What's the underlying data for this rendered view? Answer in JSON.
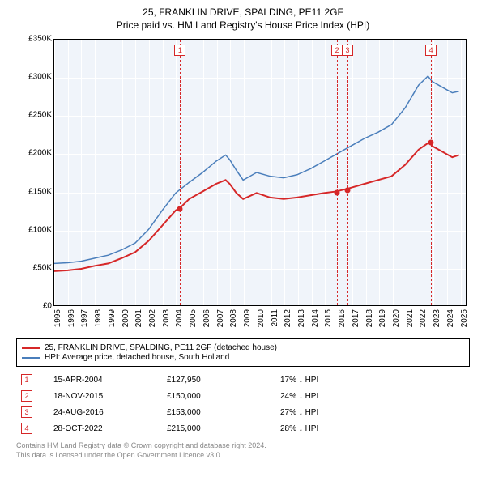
{
  "title": "25, FRANKLIN DRIVE, SPALDING, PE11 2GF",
  "subtitle": "Price paid vs. HM Land Registry's House Price Index (HPI)",
  "chart": {
    "type": "line",
    "background_color": "#f0f4fa",
    "grid_color": "#ffffff",
    "xlim": [
      1995,
      2025.5
    ],
    "ylim": [
      0,
      350000
    ],
    "ytick_step": 50000,
    "yticks": [
      "£0",
      "£50K",
      "£100K",
      "£150K",
      "£200K",
      "£250K",
      "£300K",
      "£350K"
    ],
    "xticks": [
      1995,
      1996,
      1997,
      1998,
      1999,
      2000,
      2001,
      2002,
      2003,
      2004,
      2005,
      2006,
      2007,
      2008,
      2009,
      2010,
      2011,
      2012,
      2013,
      2014,
      2015,
      2016,
      2017,
      2018,
      2019,
      2020,
      2021,
      2022,
      2023,
      2024,
      2025
    ],
    "series": [
      {
        "name": "price_paid",
        "label": "25, FRANKLIN DRIVE, SPALDING, PE11 2GF (detached house)",
        "color": "#d62728",
        "line_width": 2,
        "data": [
          [
            1995,
            45000
          ],
          [
            1996,
            46000
          ],
          [
            1997,
            48000
          ],
          [
            1998,
            52000
          ],
          [
            1999,
            55000
          ],
          [
            2000,
            62000
          ],
          [
            2001,
            70000
          ],
          [
            2002,
            85000
          ],
          [
            2003,
            105000
          ],
          [
            2004,
            125000
          ],
          [
            2004.3,
            127950
          ],
          [
            2005,
            140000
          ],
          [
            2006,
            150000
          ],
          [
            2007,
            160000
          ],
          [
            2007.7,
            165000
          ],
          [
            2008,
            160000
          ],
          [
            2008.5,
            148000
          ],
          [
            2009,
            140000
          ],
          [
            2010,
            148000
          ],
          [
            2011,
            142000
          ],
          [
            2012,
            140000
          ],
          [
            2013,
            142000
          ],
          [
            2014,
            145000
          ],
          [
            2015,
            148000
          ],
          [
            2015.9,
            150000
          ],
          [
            2016.6,
            153000
          ],
          [
            2017,
            155000
          ],
          [
            2018,
            160000
          ],
          [
            2019,
            165000
          ],
          [
            2020,
            170000
          ],
          [
            2021,
            185000
          ],
          [
            2022,
            205000
          ],
          [
            2022.8,
            215000
          ],
          [
            2023,
            210000
          ],
          [
            2024,
            200000
          ],
          [
            2024.5,
            195000
          ],
          [
            2025,
            198000
          ]
        ]
      },
      {
        "name": "hpi",
        "label": "HPI: Average price, detached house, South Holland",
        "color": "#4a7ebb",
        "line_width": 1.5,
        "data": [
          [
            1995,
            55000
          ],
          [
            1996,
            56000
          ],
          [
            1997,
            58000
          ],
          [
            1998,
            62000
          ],
          [
            1999,
            66000
          ],
          [
            2000,
            73000
          ],
          [
            2001,
            82000
          ],
          [
            2002,
            100000
          ],
          [
            2003,
            125000
          ],
          [
            2004,
            148000
          ],
          [
            2005,
            162000
          ],
          [
            2006,
            175000
          ],
          [
            2007,
            190000
          ],
          [
            2007.7,
            198000
          ],
          [
            2008,
            192000
          ],
          [
            2008.5,
            178000
          ],
          [
            2009,
            165000
          ],
          [
            2010,
            175000
          ],
          [
            2011,
            170000
          ],
          [
            2012,
            168000
          ],
          [
            2013,
            172000
          ],
          [
            2014,
            180000
          ],
          [
            2015,
            190000
          ],
          [
            2016,
            200000
          ],
          [
            2017,
            210000
          ],
          [
            2018,
            220000
          ],
          [
            2019,
            228000
          ],
          [
            2020,
            238000
          ],
          [
            2021,
            260000
          ],
          [
            2022,
            290000
          ],
          [
            2022.7,
            302000
          ],
          [
            2023,
            295000
          ],
          [
            2024,
            285000
          ],
          [
            2024.5,
            280000
          ],
          [
            2025,
            282000
          ]
        ]
      }
    ],
    "markers": [
      {
        "n": "1",
        "year": 2004.29,
        "color": "#d62728",
        "point_y": 127950
      },
      {
        "n": "2",
        "year": 2015.88,
        "color": "#d62728",
        "point_y": 150000
      },
      {
        "n": "3",
        "year": 2016.65,
        "color": "#d62728",
        "point_y": 153000
      },
      {
        "n": "4",
        "year": 2022.82,
        "color": "#d62728",
        "point_y": 215000
      }
    ],
    "axis_fontsize": 10,
    "title_fontsize": 12
  },
  "legend": {
    "box_border": "#000000",
    "items": [
      {
        "color": "#d62728",
        "label": "25, FRANKLIN DRIVE, SPALDING, PE11 2GF (detached house)"
      },
      {
        "color": "#4a7ebb",
        "label": "HPI: Average price, detached house, South Holland"
      }
    ]
  },
  "transactions": [
    {
      "n": "1",
      "date": "15-APR-2004",
      "price": "£127,950",
      "pct": "17%",
      "arrow": "↓",
      "vs": "HPI",
      "color": "#d62728"
    },
    {
      "n": "2",
      "date": "18-NOV-2015",
      "price": "£150,000",
      "pct": "24%",
      "arrow": "↓",
      "vs": "HPI",
      "color": "#d62728"
    },
    {
      "n": "3",
      "date": "24-AUG-2016",
      "price": "£153,000",
      "pct": "27%",
      "arrow": "↓",
      "vs": "HPI",
      "color": "#d62728"
    },
    {
      "n": "4",
      "date": "28-OCT-2022",
      "price": "£215,000",
      "pct": "28%",
      "arrow": "↓",
      "vs": "HPI",
      "color": "#d62728"
    }
  ],
  "footnote": {
    "line1": "Contains HM Land Registry data © Crown copyright and database right 2024.",
    "line2": "This data is licensed under the Open Government Licence v3.0."
  }
}
